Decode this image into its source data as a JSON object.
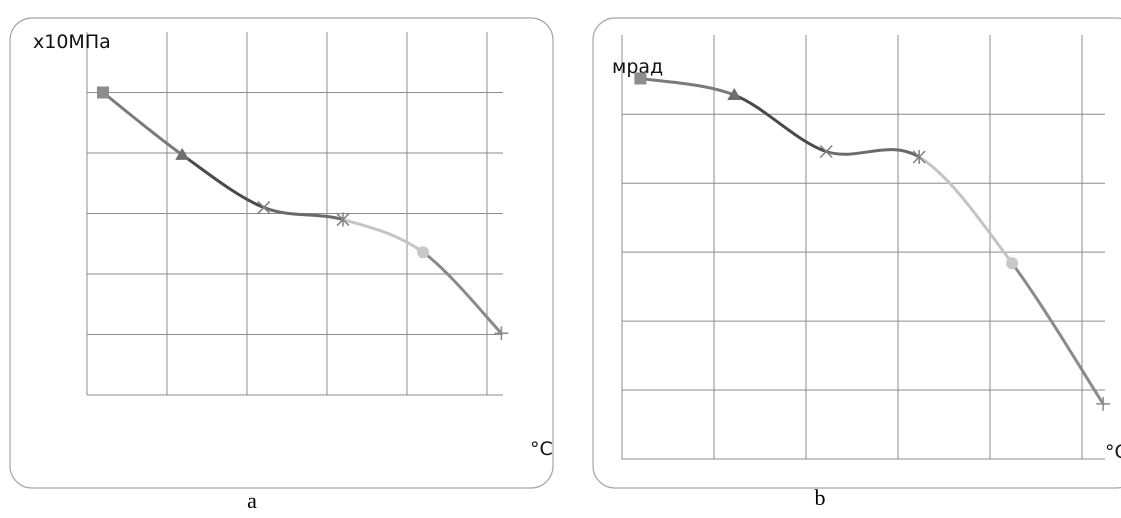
{
  "chart_data": [
    {
      "type": "line",
      "y_label": "x10МПа",
      "x_label": "°C",
      "caption": "a",
      "x": [
        0.2,
        1.19,
        2.21,
        3.2,
        4.2,
        5.18
      ],
      "values": [
        5.0,
        3.97,
        3.1,
        2.9,
        2.36,
        1.02
      ],
      "markers": [
        "square",
        "triangle",
        "x",
        "star",
        "circle",
        "plus"
      ],
      "marker_colors": [
        "#8c8c8c",
        "#6e6e6e",
        "#808080",
        "#808080",
        "#c8c8c8",
        "#8c8c8c"
      ],
      "segment_colors": [
        "#7a7a7a",
        "#4a4a4a",
        "#6a6a6a",
        "#c4c4c4",
        "#8a8a8a"
      ],
      "xlim": [
        0,
        5.2
      ],
      "ylim": [
        0,
        6
      ],
      "xticks": [
        0,
        1,
        2,
        3,
        4,
        5
      ],
      "yticks": [
        0,
        1,
        2,
        3,
        4,
        5
      ],
      "grid": true
    },
    {
      "type": "line",
      "y_label": "мрад",
      "x_label": "°C",
      "caption": "b",
      "x": [
        0.2,
        1.22,
        2.22,
        3.23,
        4.24,
        5.23
      ],
      "values": [
        5.52,
        5.28,
        4.46,
        4.38,
        2.84,
        0.8
      ],
      "markers": [
        "square",
        "triangle",
        "x",
        "star",
        "circle",
        "plus"
      ],
      "marker_colors": [
        "#8c8c8c",
        "#6e6e6e",
        "#808080",
        "#808080",
        "#c8c8c8",
        "#8c8c8c"
      ],
      "segment_colors": [
        "#7a7a7a",
        "#4a4a4a",
        "#6a6a6a",
        "#c4c4c4",
        "#8a8a8a"
      ],
      "xlim": [
        0,
        5.25
      ],
      "ylim": [
        0,
        6.15
      ],
      "xticks": [
        0,
        1,
        2,
        3,
        4,
        5
      ],
      "yticks": [
        0,
        1,
        2,
        3,
        4,
        5
      ],
      "grid": true
    }
  ]
}
